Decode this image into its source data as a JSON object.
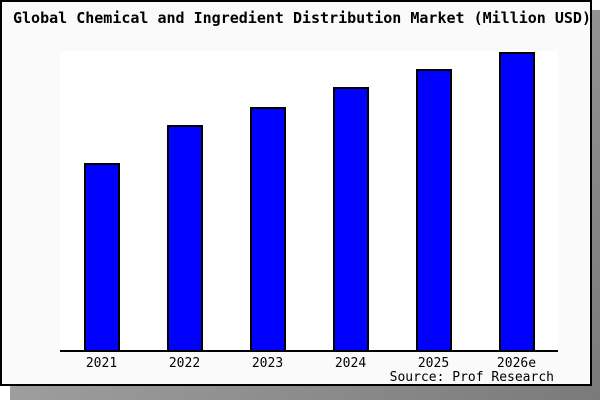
{
  "title": "Global Chemical and Ingredient Distribution Market (Million USD)",
  "source": "Source: Prof Research",
  "colors": {
    "bar_fill": "#0000ff",
    "bar_border": "#000000",
    "chart_background": "#fafafa",
    "plot_background": "#ffffff",
    "axis": "#000000",
    "shadow": "#8f8f8f",
    "text": "#000000"
  },
  "chart_data": {
    "type": "bar",
    "title": "Global Chemical and Ingredient Distribution Market (Million USD)",
    "categories": [
      "2021",
      "2022",
      "2023",
      "2024",
      "2025",
      "2026e"
    ],
    "values": [
      62.8,
      75.5,
      81.5,
      88.3,
      94.3,
      100
    ],
    "series_note": "no y-axis or data labels shown; values are relative estimates from bar heights with 2026e = 100",
    "xlabel": "",
    "ylabel": "",
    "ylim": [
      0,
      100
    ],
    "grid": false,
    "legend": false,
    "annotation": "Source: Prof Research"
  }
}
